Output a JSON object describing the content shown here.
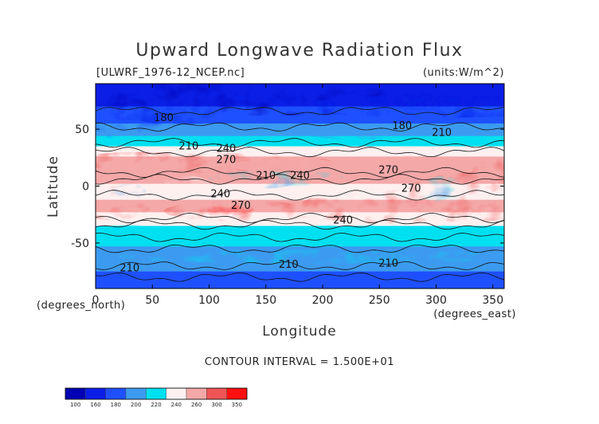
{
  "chart_data": {
    "type": "heatmap",
    "title": "Upward Longwave Radiation Flux",
    "file_label": "[ULWRF_1976-12_NCEP.nc]",
    "units_label": "(units:W/m^2)",
    "xlabel": "Longitude",
    "ylabel": "Latitude",
    "x_units": "(degrees_east)",
    "y_units": "(degrees_north)",
    "xlim": [
      0,
      360
    ],
    "ylim": [
      -90,
      90
    ],
    "x_ticks": [
      0,
      50,
      100,
      150,
      200,
      250,
      300,
      350
    ],
    "y_ticks": [
      -50,
      0,
      50
    ],
    "contour_interval_label": "CONTOUR INTERVAL = 1.500E+01",
    "colorbar": {
      "levels": [
        100,
        160,
        180,
        200,
        220,
        240,
        260,
        300,
        350
      ],
      "colors": [
        "#0000b4",
        "#0a1ee6",
        "#1e50ff",
        "#3c9bf0",
        "#00e0f0",
        "#fff0f0",
        "#f4a8a8",
        "#f05555",
        "#ff1010"
      ]
    },
    "zonal_profile": {
      "lat": [
        -90,
        -75,
        -60,
        -45,
        -35,
        -20,
        -5,
        10,
        25,
        40,
        55,
        70,
        90
      ],
      "values": [
        195,
        200,
        212,
        228,
        240,
        265,
        255,
        265,
        262,
        228,
        200,
        180,
        172
      ]
    },
    "contour_labels": [
      {
        "text": "180",
        "lon": 60,
        "lat": 60
      },
      {
        "text": "180",
        "lon": 270,
        "lat": 53
      },
      {
        "text": "210",
        "lon": 82,
        "lat": 35
      },
      {
        "text": "240",
        "lon": 115,
        "lat": 33
      },
      {
        "text": "270",
        "lon": 115,
        "lat": 23
      },
      {
        "text": "210",
        "lon": 150,
        "lat": 9
      },
      {
        "text": "240",
        "lon": 180,
        "lat": 9
      },
      {
        "text": "240",
        "lon": 110,
        "lat": -7
      },
      {
        "text": "270",
        "lon": 128,
        "lat": -17
      },
      {
        "text": "240",
        "lon": 218,
        "lat": -30
      },
      {
        "text": "210",
        "lon": 305,
        "lat": 47
      },
      {
        "text": "270",
        "lon": 258,
        "lat": 14
      },
      {
        "text": "270",
        "lon": 278,
        "lat": -2
      },
      {
        "text": "210",
        "lon": 30,
        "lat": -72
      },
      {
        "text": "210",
        "lon": 170,
        "lat": -69
      },
      {
        "text": "210",
        "lon": 258,
        "lat": -68
      }
    ]
  }
}
